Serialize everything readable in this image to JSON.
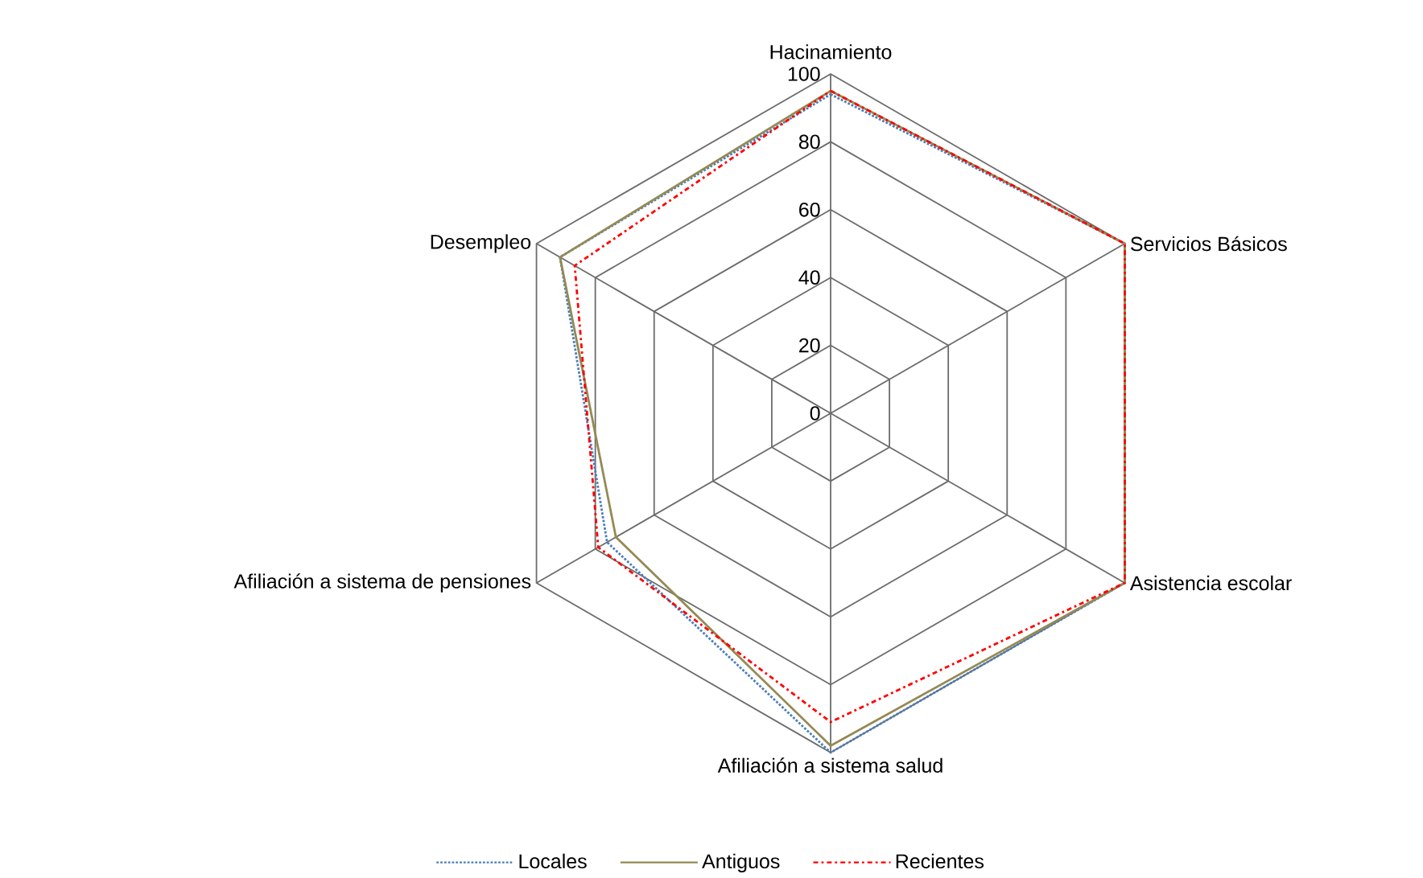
{
  "chart_data": {
    "type": "radar",
    "categories": [
      "Hacinamiento",
      "Servicios Básicos",
      "Asistencia escolar",
      "Afiliación a sistema salud",
      "Afiliación a sistema de pensiones",
      "Desempleo"
    ],
    "ylim": [
      0,
      100
    ],
    "yticks": [
      0,
      20,
      40,
      60,
      80,
      100
    ],
    "grid": true,
    "legend": "bottom",
    "series": [
      {
        "name": "Locales",
        "color": "#4a7ebb",
        "line_style": "dotted",
        "values": [
          94,
          100,
          100,
          100,
          76,
          92
        ]
      },
      {
        "name": "Antiguos",
        "color": "#948a54",
        "line_style": "solid",
        "values": [
          95,
          100,
          100,
          98,
          73,
          92
        ]
      },
      {
        "name": "Recientes",
        "color": "#ff0000",
        "line_style": "dashdot",
        "values": [
          95,
          100,
          100,
          91,
          79,
          87
        ]
      }
    ]
  }
}
